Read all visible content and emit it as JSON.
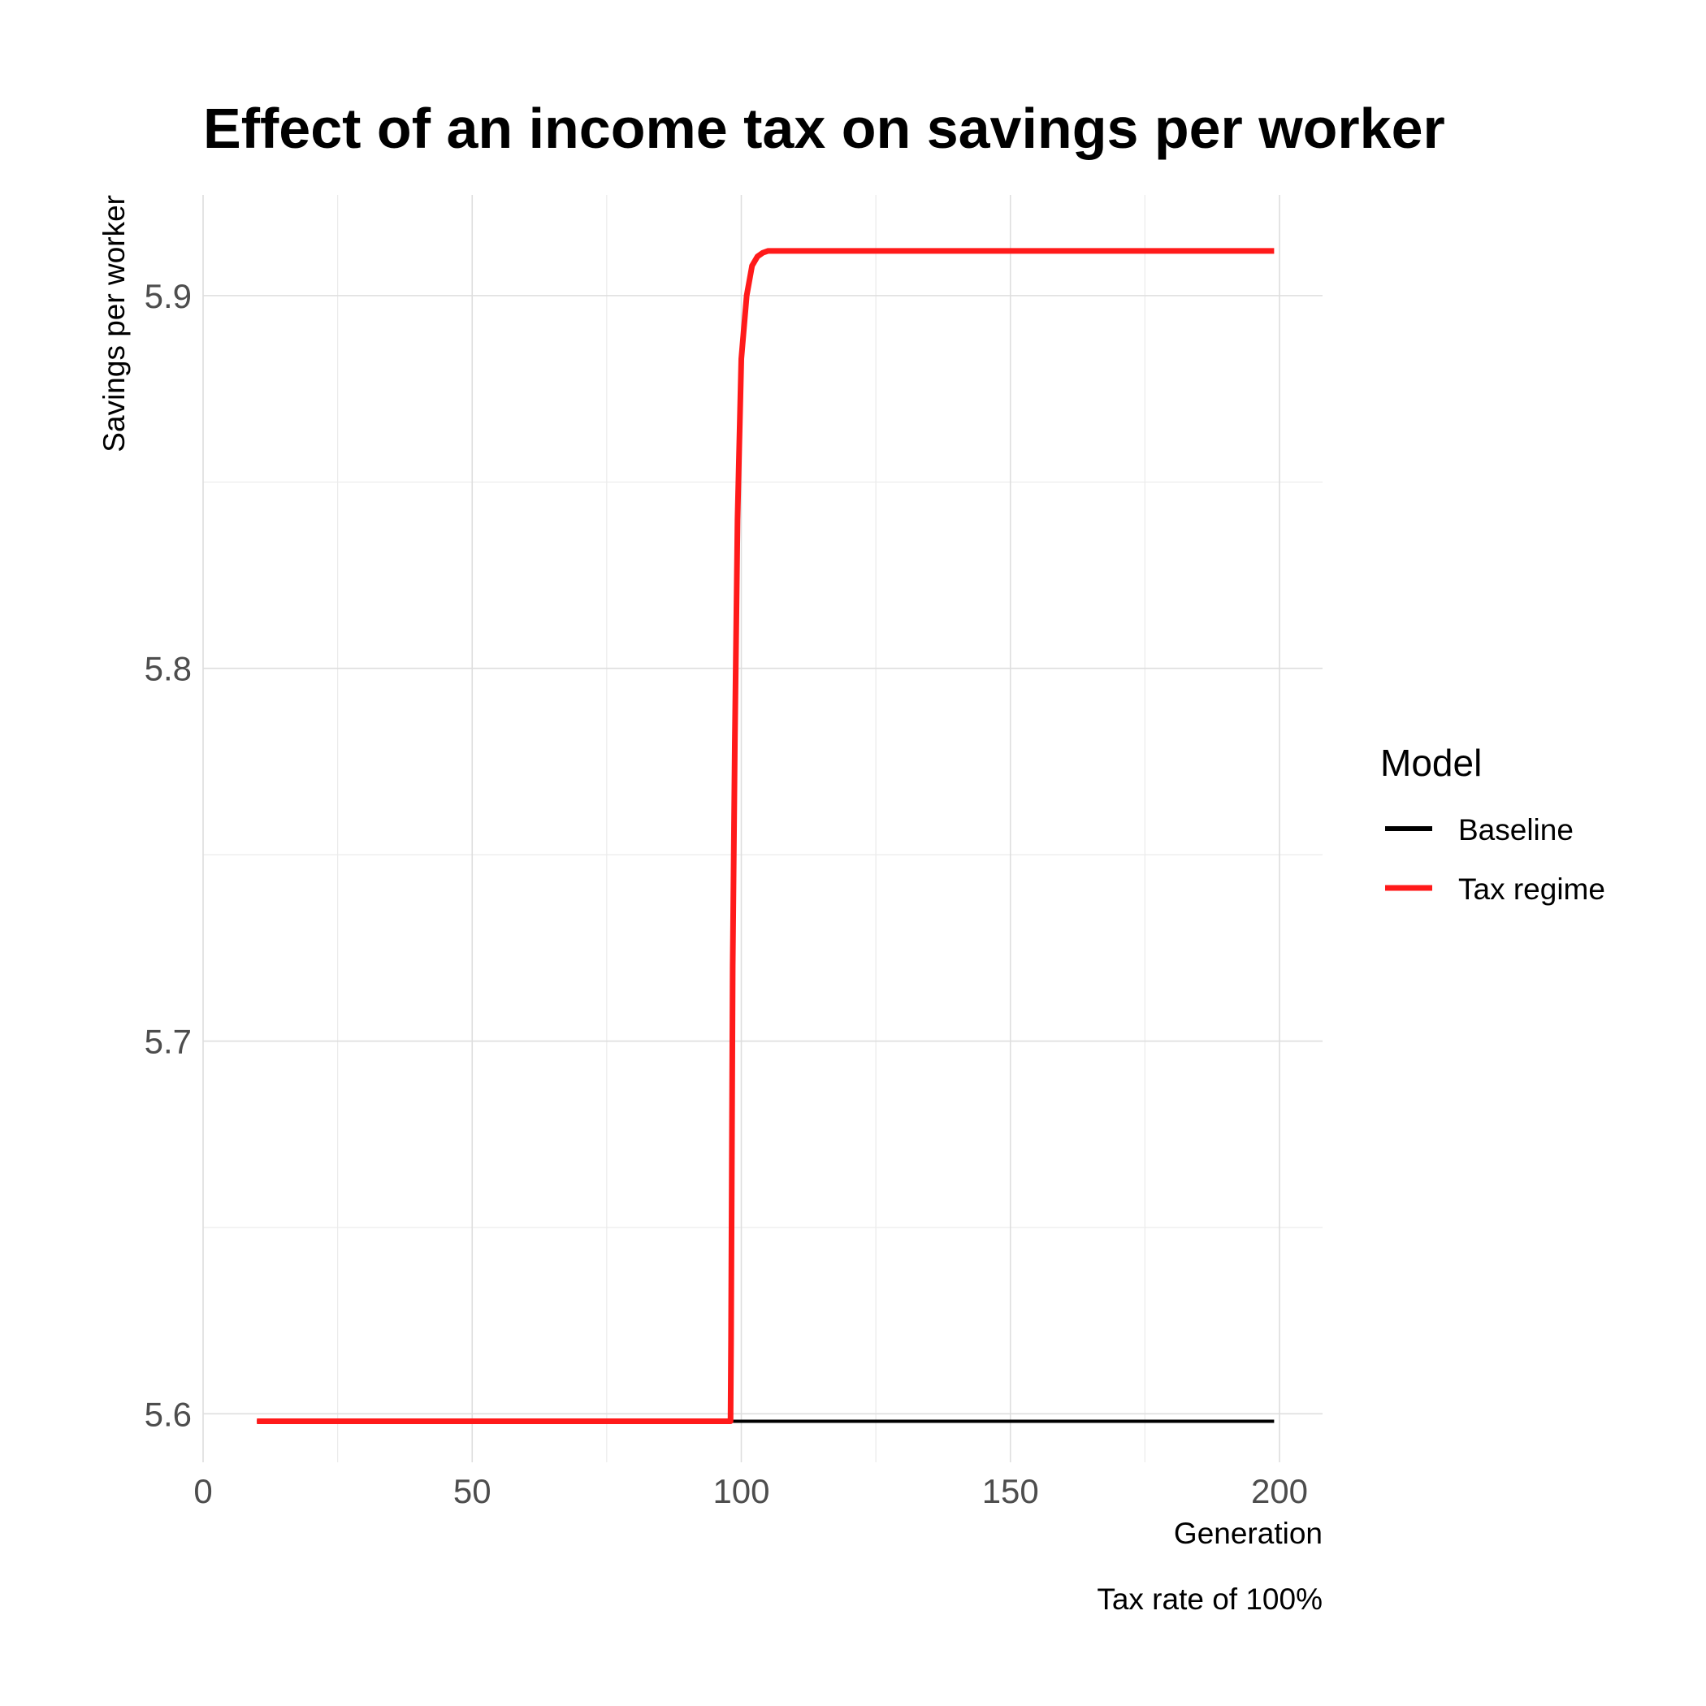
{
  "chart_data": {
    "type": "line",
    "title": "Effect of an income tax on savings per worker",
    "xlabel": "Generation",
    "ylabel": "Savings per worker",
    "caption": "Tax rate of 100%",
    "xlim": [
      0,
      208
    ],
    "ylim": [
      5.587,
      5.927
    ],
    "x_ticks": [
      0,
      50,
      100,
      150,
      200
    ],
    "x_tick_labels": [
      "0",
      "50",
      "100",
      "150",
      "200"
    ],
    "x_minor_ticks": [
      25,
      75,
      125,
      175
    ],
    "y_ticks": [
      5.6,
      5.7,
      5.8,
      5.9
    ],
    "y_tick_labels": [
      "5.6",
      "5.7",
      "5.8",
      "5.9"
    ],
    "y_minor_ticks": [
      5.65,
      5.75,
      5.85
    ],
    "grid": true,
    "legend": {
      "title": "Model",
      "position": "right",
      "entries": [
        "Baseline",
        "Tax regime"
      ]
    },
    "series": [
      {
        "name": "Baseline",
        "color": "#000000",
        "points": [
          [
            10,
            5.598
          ],
          [
            199,
            5.598
          ]
        ]
      },
      {
        "name": "Tax regime",
        "color": "#ff1a1a",
        "points": [
          [
            10,
            5.598
          ],
          [
            98,
            5.598
          ],
          [
            98.1,
            5.62
          ],
          [
            98.4,
            5.72
          ],
          [
            98.8,
            5.78
          ],
          [
            99.3,
            5.84
          ],
          [
            100,
            5.883
          ],
          [
            101,
            5.9
          ],
          [
            102,
            5.908
          ],
          [
            103,
            5.9105
          ],
          [
            104,
            5.9115
          ],
          [
            105,
            5.912
          ],
          [
            107,
            5.912
          ],
          [
            150,
            5.912
          ],
          [
            199,
            5.912
          ]
        ]
      }
    ]
  }
}
